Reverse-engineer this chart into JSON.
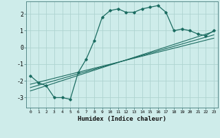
{
  "xlabel": "Humidex (Indice chaleur)",
  "bg_color": "#ceecea",
  "grid_color": "#aed4d0",
  "line_color": "#1a6b60",
  "xlim": [
    -0.5,
    23.5
  ],
  "ylim": [
    -3.6,
    2.75
  ],
  "xticks": [
    0,
    1,
    2,
    3,
    4,
    5,
    6,
    7,
    8,
    9,
    10,
    11,
    12,
    13,
    14,
    15,
    16,
    17,
    18,
    19,
    20,
    21,
    22,
    23
  ],
  "yticks": [
    -3,
    -2,
    -1,
    0,
    1,
    2
  ],
  "curve1_x": [
    0,
    1,
    2,
    3,
    4,
    5,
    6,
    7,
    8,
    9,
    10,
    11,
    12,
    13,
    14,
    15,
    16,
    17,
    18,
    19,
    20,
    21,
    22,
    23
  ],
  "curve1_y": [
    -1.7,
    -2.1,
    -2.3,
    -3.0,
    -3.0,
    -3.1,
    -1.5,
    -0.7,
    0.4,
    1.8,
    2.2,
    2.3,
    2.1,
    2.1,
    2.3,
    2.4,
    2.5,
    2.1,
    1.0,
    1.1,
    1.0,
    0.8,
    0.7,
    1.0
  ],
  "line1_x": [
    0,
    23
  ],
  "line1_y": [
    -2.6,
    0.95
  ],
  "line2_x": [
    0,
    23
  ],
  "line2_y": [
    -2.4,
    0.75
  ],
  "line3_x": [
    0,
    23
  ],
  "line3_y": [
    -2.2,
    0.55
  ]
}
